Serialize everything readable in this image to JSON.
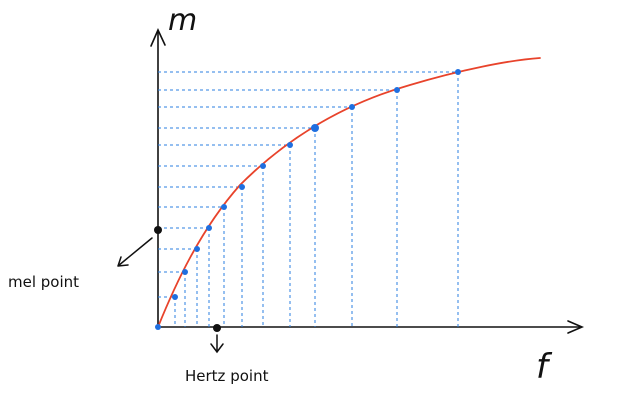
{
  "labels": {
    "y_axis": "m",
    "x_axis": "f",
    "mel_point": "mel point",
    "hertz_point": "Hertz point"
  },
  "colors": {
    "curve": "#e8432b",
    "points": "#1f6fe0",
    "guides": "#2b7fe0",
    "ink": "#111111"
  },
  "diagram": {
    "curve_points_count": 15
  }
}
